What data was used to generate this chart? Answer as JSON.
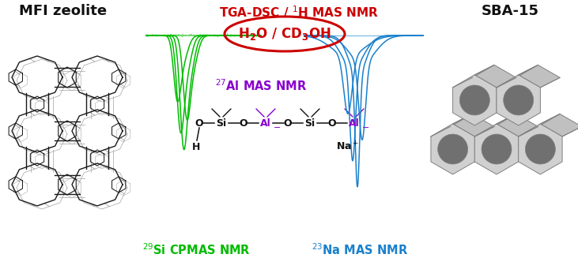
{
  "text_mfi": "MFI zeolite",
  "text_sba": "SBA-15",
  "text_tga": "TGA-DSC / ¹H MAS NMR",
  "text_27al": "²⁷Al MAS NMR",
  "text_29si": "²⁹Si CPMAS NMR",
  "text_23na": "²³Na MAS NMR",
  "color_green": "#00bb00",
  "color_blue": "#1a80cc",
  "color_red": "#cc0000",
  "color_purple": "#8800cc",
  "color_black": "#111111",
  "color_bg": "#ffffff",
  "color_gray_light": "#d4d4d4",
  "color_gray_mid": "#b8b8b8",
  "color_gray_dark": "#909090",
  "figsize": [
    7.31,
    3.41
  ],
  "dpi": 100
}
